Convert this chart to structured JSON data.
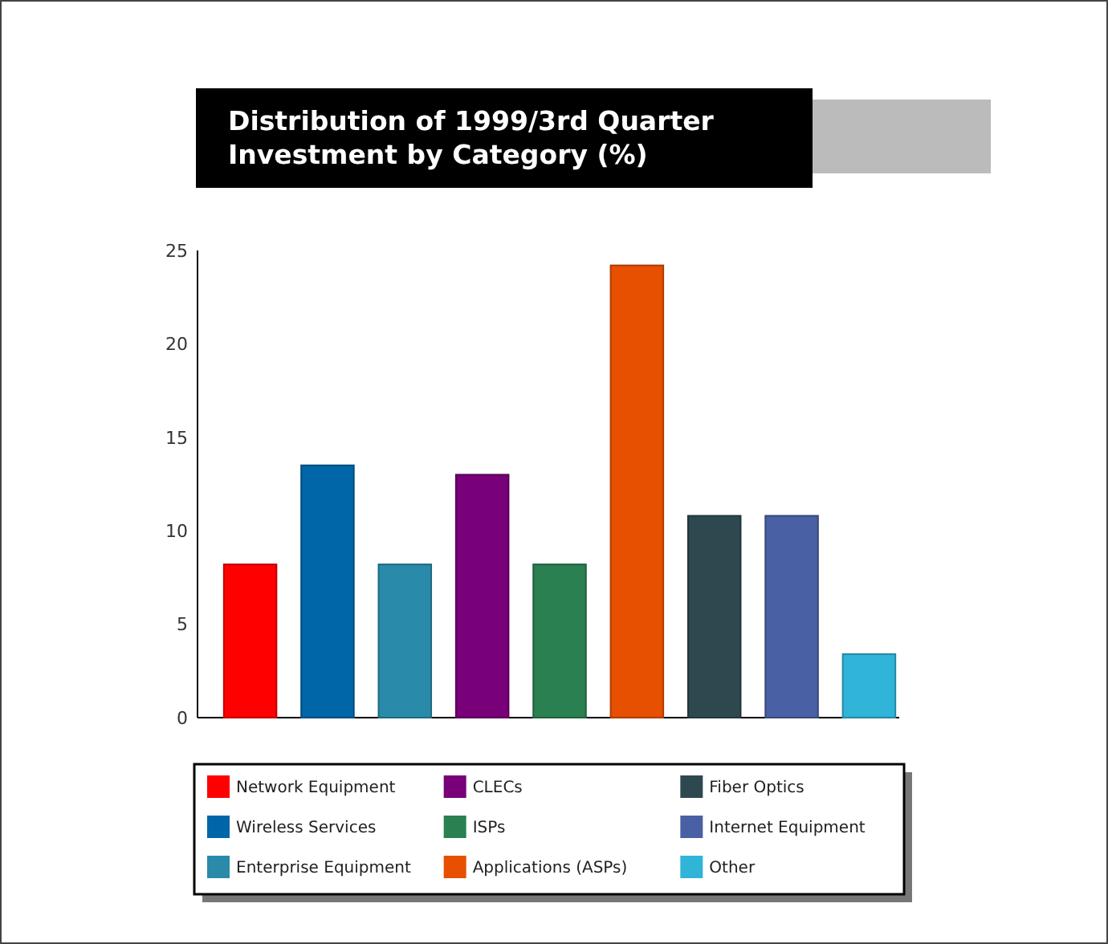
{
  "chart_data": {
    "type": "bar",
    "title": "Distribution of 1999/3rd Quarter Investment by Category (%)",
    "categories": [
      null,
      null,
      null,
      null,
      null,
      null,
      null,
      null,
      null
    ],
    "series": [
      {
        "name": "Network Equipment",
        "color": "#ff0000",
        "values": [
          8.2,
          null,
          null,
          null,
          null,
          null,
          null,
          null,
          null
        ]
      },
      {
        "name": "Wireless Services",
        "color": "#0066a8",
        "values": [
          null,
          13.5,
          null,
          null,
          null,
          null,
          null,
          null,
          null
        ]
      },
      {
        "name": "Enterprise Equipment",
        "color": "#2a8aaa",
        "values": [
          null,
          null,
          8.2,
          null,
          null,
          null,
          null,
          null,
          null
        ]
      },
      {
        "name": "CLECs",
        "color": "#780078",
        "values": [
          null,
          null,
          null,
          13.0,
          null,
          null,
          null,
          null,
          null
        ]
      },
      {
        "name": "ISPs",
        "color": "#2a8050",
        "values": [
          null,
          null,
          null,
          null,
          8.2,
          null,
          null,
          null,
          null
        ]
      },
      {
        "name": "Applications (ASPs)",
        "color": "#e65000",
        "values": [
          null,
          null,
          null,
          null,
          null,
          24.2,
          null,
          null,
          null
        ]
      },
      {
        "name": "Fiber Optics",
        "color": "#2e4850",
        "values": [
          null,
          null,
          null,
          null,
          null,
          null,
          10.8,
          null,
          null
        ]
      },
      {
        "name": "Internet Equipment",
        "color": "#4a60a4",
        "values": [
          null,
          null,
          null,
          null,
          null,
          null,
          null,
          10.8,
          null
        ]
      },
      {
        "name": "Other",
        "color": "#30b4d8",
        "values": [
          null,
          null,
          null,
          null,
          null,
          null,
          null,
          null,
          3.4
        ]
      }
    ],
    "stacked": true,
    "ylim": [
      0,
      25
    ],
    "yticks": [
      0,
      5,
      10,
      15,
      20,
      25
    ],
    "legend": "bottom"
  }
}
